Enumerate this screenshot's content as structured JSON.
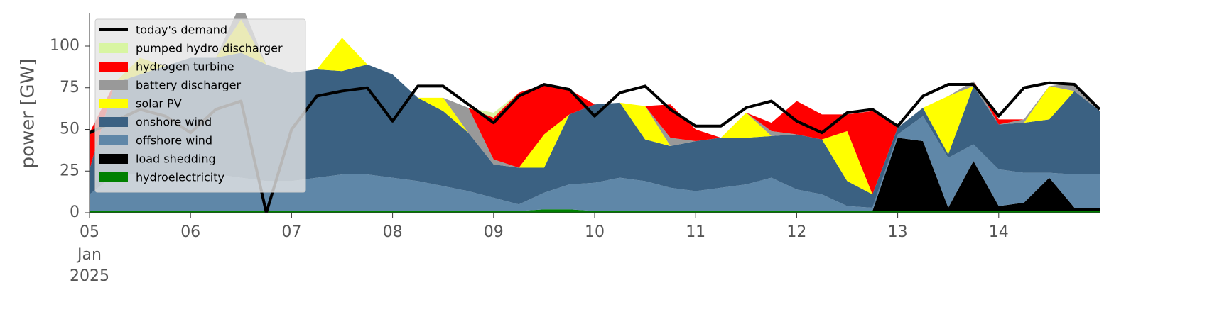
{
  "chart_data": {
    "type": "stacked_area",
    "ylabel": "power [GW]",
    "x": [
      0,
      0.25,
      0.5,
      0.75,
      1,
      1.25,
      1.5,
      1.75,
      2,
      2.25,
      2.5,
      2.75,
      3,
      3.25,
      3.5,
      3.75,
      4,
      4.25,
      4.5,
      4.75,
      5,
      5.25,
      5.5,
      5.75,
      6,
      6.25,
      6.5,
      6.75,
      7,
      7.25,
      7.5,
      7.75,
      8,
      8.25,
      8.5,
      8.75,
      9,
      9.25,
      9.5,
      9.75,
      10
    ],
    "xlim": [
      0,
      10
    ],
    "xticks": [
      {
        "value": 0,
        "label": "05"
      },
      {
        "value": 1,
        "label": "06"
      },
      {
        "value": 2,
        "label": "07"
      },
      {
        "value": 3,
        "label": "08"
      },
      {
        "value": 4,
        "label": "09"
      },
      {
        "value": 5,
        "label": "10"
      },
      {
        "value": 6,
        "label": "11"
      },
      {
        "value": 7,
        "label": "12"
      },
      {
        "value": 8,
        "label": "13"
      },
      {
        "value": 9,
        "label": "14"
      }
    ],
    "x_sublabels": [
      "Jan",
      "2025"
    ],
    "ylim": [
      0,
      120
    ],
    "yticks": [
      0,
      25,
      50,
      75,
      100
    ],
    "legend": "upper left",
    "line_series": {
      "name": "today's demand",
      "color": "#000000",
      "values": [
        48,
        55,
        62,
        58,
        48,
        62,
        67,
        0,
        50,
        70,
        73,
        75,
        55,
        76,
        76,
        65,
        54,
        70,
        77,
        74,
        58,
        72,
        76,
        62,
        52,
        52,
        63,
        67,
        55,
        48,
        60,
        62,
        52,
        70,
        77,
        77,
        58,
        75,
        78,
        77,
        62
      ]
    },
    "series": [
      {
        "name": "hydroelectricity",
        "color": "#008000",
        "values": [
          1,
          1,
          1,
          1,
          1,
          1,
          1,
          1,
          1,
          1,
          1,
          1,
          1,
          1,
          1,
          1,
          1,
          1,
          2,
          2,
          1,
          1,
          1,
          1,
          1,
          1,
          1,
          1,
          1,
          1,
          1,
          1,
          1,
          1,
          1,
          1,
          1,
          1,
          1,
          1,
          1
        ]
      },
      {
        "name": "load shedding",
        "color": "#000000",
        "values": [
          0,
          0,
          0,
          0,
          0,
          0,
          0,
          0,
          0,
          0,
          0,
          0,
          0,
          0,
          0,
          0,
          0,
          0,
          0,
          0,
          0,
          0,
          0,
          0,
          0,
          0,
          0,
          0,
          0,
          0,
          0,
          0,
          44,
          42,
          2,
          30,
          3,
          5,
          20,
          2,
          2
        ]
      },
      {
        "name": "offshore wind",
        "color": "#5f87a8",
        "values": [
          10,
          22,
          22,
          22,
          22,
          22,
          20,
          18,
          18,
          20,
          22,
          22,
          20,
          18,
          15,
          12,
          8,
          4,
          10,
          15,
          17,
          20,
          18,
          14,
          12,
          14,
          16,
          20,
          13,
          10,
          3,
          2,
          2,
          15,
          30,
          10,
          22,
          18,
          3,
          20,
          20
        ]
      },
      {
        "name": "onshore wind",
        "color": "#3b6182",
        "values": [
          15,
          55,
          60,
          65,
          70,
          70,
          75,
          70,
          65,
          65,
          62,
          66,
          62,
          50,
          45,
          35,
          20,
          22,
          15,
          42,
          47,
          45,
          25,
          25,
          30,
          30,
          28,
          25,
          33,
          33,
          15,
          8,
          4,
          5,
          2,
          35,
          27,
          30,
          32,
          50,
          38
        ]
      },
      {
        "name": "solar PV",
        "color": "#ffff00",
        "values": [
          0,
          0,
          10,
          0,
          0,
          0,
          20,
          0,
          0,
          0,
          20,
          0,
          0,
          0,
          8,
          0,
          0,
          0,
          20,
          0,
          0,
          0,
          20,
          0,
          0,
          0,
          15,
          0,
          0,
          0,
          30,
          0,
          0,
          0,
          35,
          0,
          0,
          0,
          20,
          0,
          0
        ]
      },
      {
        "name": "battery discharger",
        "color": "#999999",
        "values": [
          0,
          0,
          0,
          0,
          0,
          0,
          10,
          0,
          0,
          0,
          0,
          0,
          0,
          0,
          0,
          15,
          3,
          0,
          0,
          0,
          0,
          0,
          0,
          5,
          0,
          0,
          0,
          3,
          0,
          0,
          0,
          0,
          0,
          0,
          0,
          3,
          0,
          2,
          0,
          5,
          0
        ]
      },
      {
        "name": "hydrogen turbine",
        "color": "#ff0000",
        "values": [
          22,
          0,
          0,
          0,
          0,
          0,
          0,
          0,
          0,
          0,
          0,
          0,
          0,
          0,
          0,
          0,
          25,
          45,
          30,
          15,
          0,
          0,
          0,
          20,
          7,
          0,
          0,
          5,
          20,
          15,
          10,
          50,
          0,
          0,
          0,
          0,
          3,
          0,
          0,
          0,
          0
        ]
      },
      {
        "name": "pumped hydro discharger",
        "color": "#d8f5a2",
        "values": [
          0,
          0,
          0,
          0,
          0,
          0,
          0,
          0,
          0,
          0,
          0,
          0,
          0,
          0,
          0,
          0,
          3,
          0,
          0,
          0,
          0,
          0,
          0,
          0,
          0,
          0,
          0,
          0,
          0,
          0,
          0,
          0,
          0,
          0,
          0,
          0,
          0,
          0,
          0,
          0,
          0
        ]
      }
    ]
  }
}
